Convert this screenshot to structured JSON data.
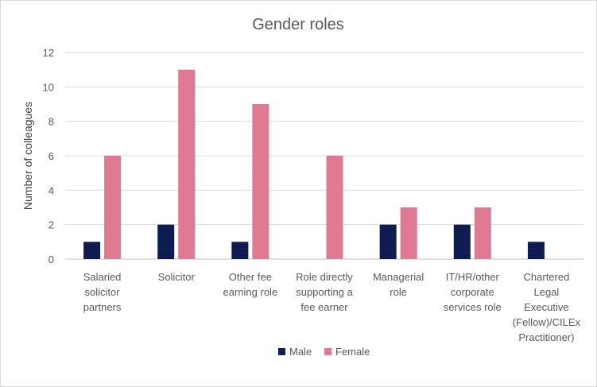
{
  "chart_data": {
    "type": "bar",
    "title": "Gender roles",
    "xlabel": "",
    "ylabel": "Number of colleagues",
    "ylim": [
      0,
      12
    ],
    "yticks": [
      0,
      2,
      4,
      6,
      8,
      10,
      12
    ],
    "grid": true,
    "legend_position": "bottom",
    "categories": [
      [
        "Salaried",
        "solicitor",
        "partners"
      ],
      [
        "Solicitor"
      ],
      [
        "Other fee",
        "earning role"
      ],
      [
        "Role directly",
        "supporting a",
        "fee earner"
      ],
      [
        "Managerial",
        "role"
      ],
      [
        "IT/HR/other",
        "corporate",
        "services role"
      ],
      [
        "Chartered",
        "Legal",
        "Executive",
        "(Fellow)/CILEx",
        "Practitioner)"
      ]
    ],
    "series": [
      {
        "name": "Male",
        "color": "#0e1c52",
        "values": [
          1,
          2,
          1,
          0,
          2,
          2,
          1
        ]
      },
      {
        "name": "Female",
        "color": "#e07a92",
        "values": [
          6,
          11,
          9,
          6,
          3,
          3,
          0
        ]
      }
    ]
  }
}
